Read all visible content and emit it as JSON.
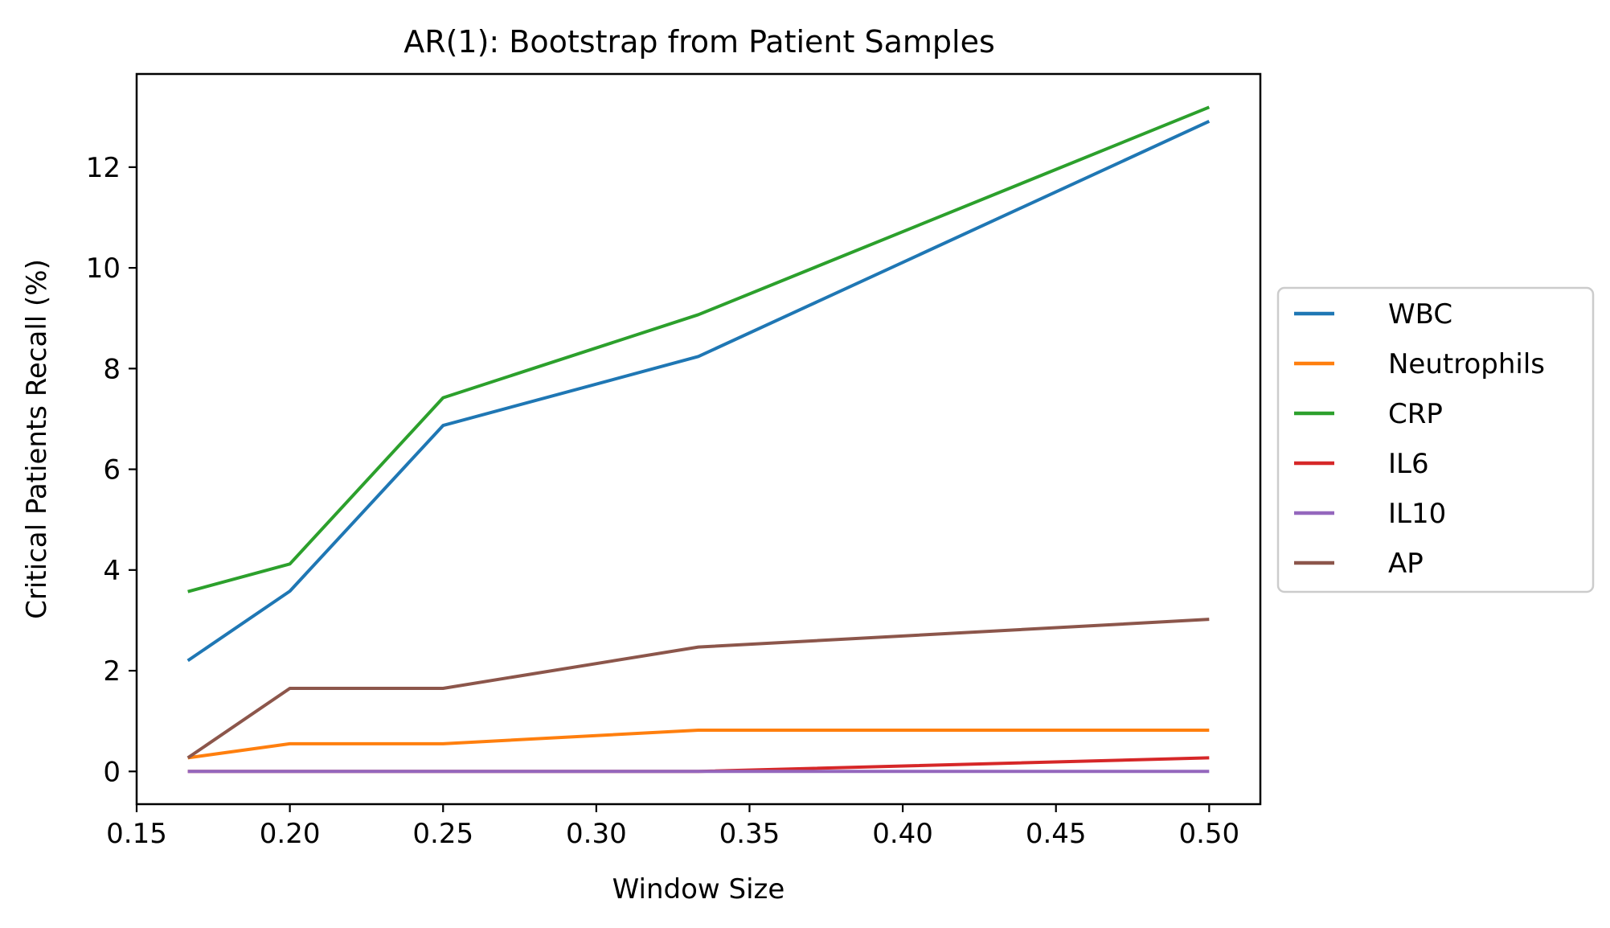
{
  "chart_data": {
    "type": "line",
    "title": "AR(1): Bootstrap from Patient Samples",
    "xlabel": "Window Size",
    "ylabel": "Critical Patients Recall (%)",
    "x": [
      0.1667,
      0.2,
      0.25,
      0.3333,
      0.5
    ],
    "xlim": [
      0.15,
      0.5167
    ],
    "ylim": [
      -0.65,
      13.85
    ],
    "xticks": [
      0.15,
      0.2,
      0.25,
      0.3,
      0.35,
      0.4,
      0.45,
      0.5
    ],
    "xtick_labels": [
      "0.15",
      "0.20",
      "0.25",
      "0.30",
      "0.35",
      "0.40",
      "0.45",
      "0.50"
    ],
    "yticks": [
      0,
      2,
      4,
      6,
      8,
      10,
      12
    ],
    "ytick_labels": [
      "0",
      "2",
      "4",
      "6",
      "8",
      "10",
      "12"
    ],
    "grid": false,
    "legend_position": "center-right-outside",
    "series": [
      {
        "name": "WBC",
        "color": "#1f77b4",
        "values": [
          2.2,
          3.58,
          6.87,
          8.24,
          12.91
        ]
      },
      {
        "name": "Neutrophils",
        "color": "#ff7f0e",
        "values": [
          0.27,
          0.55,
          0.55,
          0.82,
          0.82
        ]
      },
      {
        "name": "CRP",
        "color": "#2ca02c",
        "values": [
          3.57,
          4.12,
          7.42,
          9.07,
          13.19
        ]
      },
      {
        "name": "IL6",
        "color": "#d62728",
        "values": [
          0.0,
          0.0,
          0.0,
          0.0,
          0.27
        ]
      },
      {
        "name": "IL10",
        "color": "#9467bd",
        "values": [
          0.0,
          0.0,
          0.0,
          0.0,
          0.0
        ]
      },
      {
        "name": "AP",
        "color": "#8c564b",
        "values": [
          0.27,
          1.65,
          1.65,
          2.47,
          3.02
        ]
      }
    ]
  }
}
